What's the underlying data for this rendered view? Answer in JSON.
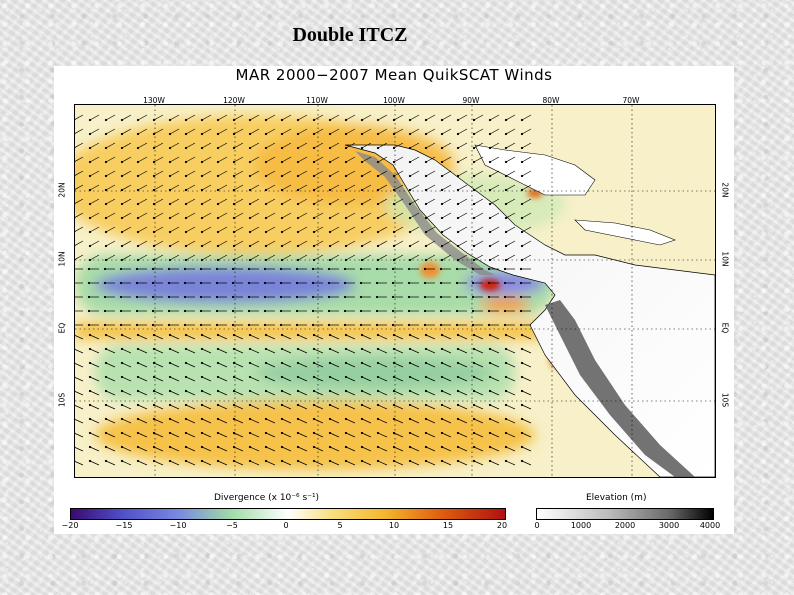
{
  "slide": {
    "title": "Double ITCZ"
  },
  "figure": {
    "title": "MAR 2000−2007 Mean QuikSCAT Winds",
    "lon_ticks": [
      "130W",
      "120W",
      "110W",
      "100W",
      "90W",
      "80W",
      "70W"
    ],
    "lat_ticks": [
      "20N",
      "10N",
      "EQ",
      "10S"
    ]
  },
  "divergence_colorbar": {
    "label": "Divergence (x 10⁻⁶ s⁻¹)",
    "ticks": [
      "−20",
      "−15",
      "−10",
      "−5",
      "0",
      "5",
      "10",
      "15",
      "20"
    ]
  },
  "elevation_colorbar": {
    "label": "Elevation (m)",
    "ticks": [
      "0",
      "1000",
      "2000",
      "3000",
      "4000"
    ]
  },
  "colors": {
    "convergence": "#6a6ad8",
    "weak_convergence": "#a8e0a8",
    "divergence": "#f5c64a",
    "strong_divergence": "#c81a10"
  }
}
